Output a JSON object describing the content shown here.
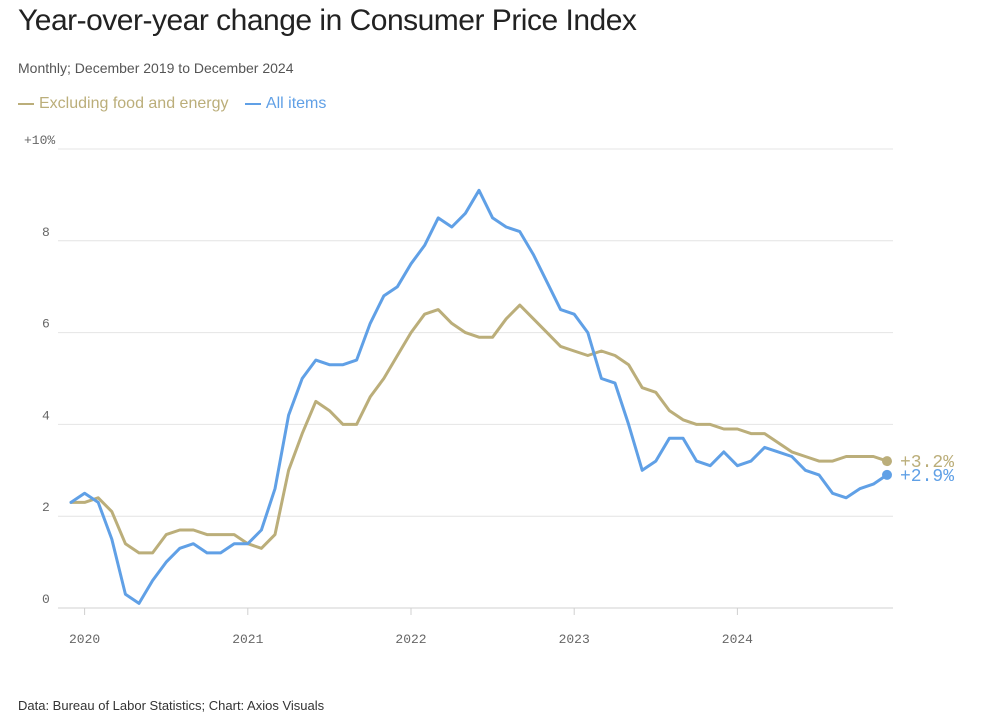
{
  "title": "Year-over-year change in Consumer Price Index",
  "subtitle": "Monthly; December 2019 to December 2024",
  "source": "Data: Bureau of Labor Statistics; Chart: Axios Visuals",
  "colors": {
    "core": "#bbae7a",
    "all": "#60a0e6",
    "grid": "#e4e4e4",
    "axis": "#d0d0d0"
  },
  "chart_data": {
    "type": "line",
    "x_start": "2019-12",
    "x_end": "2024-12",
    "x_ticks": [
      {
        "x": "2020-01",
        "label": "2020"
      },
      {
        "x": "2021-01",
        "label": "2021"
      },
      {
        "x": "2022-01",
        "label": "2022"
      },
      {
        "x": "2023-01",
        "label": "2023"
      },
      {
        "x": "2024-01",
        "label": "2024"
      }
    ],
    "y_ticks": [
      {
        "value": 0,
        "label": "0"
      },
      {
        "value": 2,
        "label": "2"
      },
      {
        "value": 4,
        "label": "4"
      },
      {
        "value": 6,
        "label": "6"
      },
      {
        "value": 8,
        "label": "8"
      },
      {
        "value": 10,
        "label": "+10%"
      }
    ],
    "ylim": [
      0,
      10
    ],
    "grid": true,
    "legend_position": "top-left",
    "series": [
      {
        "name": "Excluding food and energy",
        "key": "core",
        "end_label": "+3.2%",
        "values": [
          2.3,
          2.3,
          2.4,
          2.1,
          1.4,
          1.2,
          1.2,
          1.6,
          1.7,
          1.7,
          1.6,
          1.6,
          1.6,
          1.4,
          1.3,
          1.6,
          3.0,
          3.8,
          4.5,
          4.3,
          4.0,
          4.0,
          4.6,
          5.0,
          5.5,
          6.0,
          6.4,
          6.5,
          6.2,
          6.0,
          5.9,
          5.9,
          6.3,
          6.6,
          6.3,
          6.0,
          5.7,
          5.6,
          5.5,
          5.6,
          5.5,
          5.3,
          4.8,
          4.7,
          4.3,
          4.1,
          4.0,
          4.0,
          3.9,
          3.9,
          3.8,
          3.8,
          3.6,
          3.4,
          3.3,
          3.2,
          3.2,
          3.3,
          3.3,
          3.3,
          3.2
        ]
      },
      {
        "name": "All items",
        "key": "all",
        "end_label": "+2.9%",
        "values": [
          2.3,
          2.5,
          2.3,
          1.5,
          0.3,
          0.1,
          0.6,
          1.0,
          1.3,
          1.4,
          1.2,
          1.2,
          1.4,
          1.4,
          1.7,
          2.6,
          4.2,
          5.0,
          5.4,
          5.3,
          5.3,
          5.4,
          6.2,
          6.8,
          7.0,
          7.5,
          7.9,
          8.5,
          8.3,
          8.6,
          9.1,
          8.5,
          8.3,
          8.2,
          7.7,
          7.1,
          6.5,
          6.4,
          6.0,
          5.0,
          4.9,
          4.0,
          3.0,
          3.2,
          3.7,
          3.7,
          3.2,
          3.1,
          3.4,
          3.1,
          3.2,
          3.5,
          3.4,
          3.3,
          3.0,
          2.9,
          2.5,
          2.4,
          2.6,
          2.7,
          2.9
        ]
      }
    ]
  }
}
